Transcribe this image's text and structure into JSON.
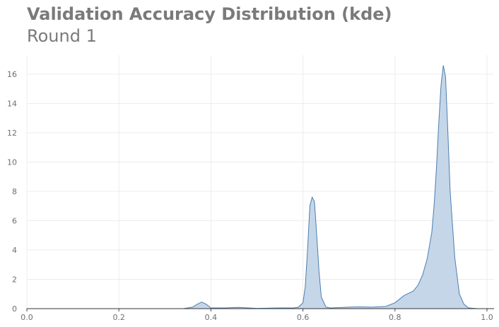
{
  "chart_data": {
    "type": "area",
    "title": "Validation Accuracy Distribution (kde)",
    "subtitle": "Round 1",
    "xlabel": "",
    "ylabel": "",
    "xlim": [
      0.0,
      1.0
    ],
    "ylim": [
      0,
      17.3
    ],
    "xticks": [
      "0.0",
      "0.2",
      "0.4",
      "0.6",
      "0.8",
      "1.0"
    ],
    "yticks": [
      "0",
      "2",
      "4",
      "6",
      "8",
      "10",
      "12",
      "14",
      "16"
    ],
    "grid": true,
    "legend": "none",
    "series_color": "#4a7fb0",
    "fill_color": "#c5d6e8",
    "x": [
      0.34,
      0.36,
      0.37,
      0.38,
      0.39,
      0.4,
      0.43,
      0.46,
      0.5,
      0.55,
      0.58,
      0.59,
      0.6,
      0.605,
      0.61,
      0.615,
      0.62,
      0.625,
      0.63,
      0.635,
      0.64,
      0.65,
      0.66,
      0.7,
      0.72,
      0.75,
      0.78,
      0.8,
      0.82,
      0.84,
      0.85,
      0.86,
      0.87,
      0.88,
      0.885,
      0.89,
      0.895,
      0.9,
      0.905,
      0.91,
      0.915,
      0.92,
      0.93,
      0.94,
      0.95,
      0.96,
      0.98
    ],
    "y": [
      0.0,
      0.1,
      0.3,
      0.45,
      0.3,
      0.05,
      0.05,
      0.08,
      0.02,
      0.05,
      0.05,
      0.1,
      0.4,
      1.5,
      4.0,
      7.0,
      7.6,
      7.3,
      5.0,
      2.5,
      0.8,
      0.1,
      0.05,
      0.1,
      0.12,
      0.1,
      0.15,
      0.4,
      0.9,
      1.2,
      1.6,
      2.3,
      3.4,
      5.2,
      7.0,
      9.5,
      12.5,
      15.2,
      16.6,
      15.8,
      12.0,
      8.0,
      3.5,
      1.0,
      0.3,
      0.05,
      0.0
    ]
  }
}
